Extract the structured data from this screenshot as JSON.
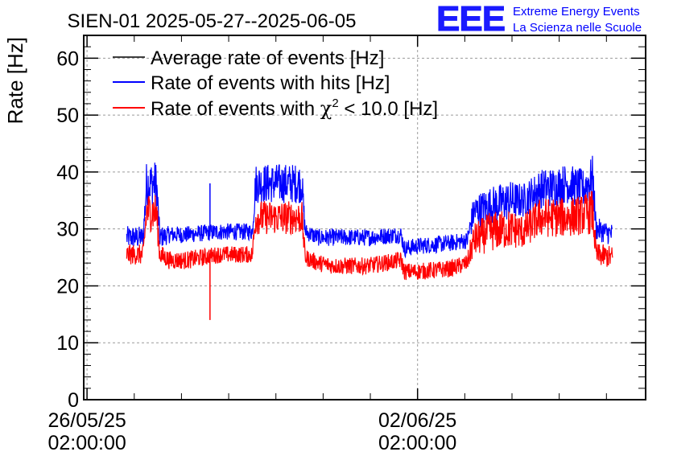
{
  "chart_data": {
    "type": "line",
    "title": "SIEN-01 2025-05-27--2025-06-05",
    "ylabel": "Rate [Hz]",
    "xlabel": "",
    "ylim": [
      0,
      64
    ],
    "xlim": [
      -0.01,
      1.69
    ],
    "yticks": [
      0,
      10,
      20,
      30,
      40,
      50,
      60
    ],
    "xticks": [
      {
        "pos": 0,
        "line1": "26/05/25",
        "line2": "02:00:00"
      },
      {
        "pos": 1,
        "line1": "02/06/25",
        "line2": "02:00:00"
      }
    ],
    "grid": true,
    "legend_position": "top-left",
    "legend": [
      {
        "label": "Average rate of events [Hz]",
        "color": "#000000"
      },
      {
        "label": "Rate of events with hits [Hz]",
        "color": "#0000ff"
      },
      {
        "label_prefix": "Rate of events with ",
        "label_symbol": "χ",
        "label_sup": "2",
        "label_suffix": " < 10.0 [Hz]",
        "color": "#ff0000"
      }
    ],
    "series": [
      {
        "name": "Rate of events with hits [Hz]",
        "color": "#0000ff",
        "x": [
          0.12,
          0.17,
          0.18,
          0.21,
          0.22,
          0.25,
          0.3,
          0.4,
          0.5,
          0.51,
          0.57,
          0.65,
          0.66,
          0.7,
          0.75,
          0.85,
          0.95,
          0.96,
          1.0,
          1.1,
          1.15,
          1.17,
          1.22,
          1.28,
          1.32,
          1.37,
          1.42,
          1.45,
          1.5,
          1.53,
          1.54,
          1.59
        ],
        "y": [
          28.5,
          28.5,
          38.0,
          38.0,
          28.5,
          29.0,
          29.0,
          29.5,
          29.5,
          38.0,
          38.0,
          38.0,
          29.5,
          28.5,
          28.5,
          28.5,
          29.0,
          26.5,
          27.0,
          27.5,
          28.0,
          33.0,
          34.0,
          35.0,
          35.0,
          37.0,
          37.5,
          38.0,
          37.0,
          39.0,
          30.0,
          29.0
        ],
        "noise": [
          2.0,
          2.0,
          4.0,
          4.0,
          2.0,
          1.5,
          1.5,
          1.5,
          1.5,
          3.5,
          3.5,
          3.5,
          1.5,
          1.5,
          1.5,
          1.5,
          1.5,
          1.5,
          1.5,
          1.5,
          1.5,
          3.0,
          3.5,
          3.5,
          3.0,
          3.5,
          3.5,
          3.5,
          3.5,
          4.0,
          2.0,
          2.0
        ]
      },
      {
        "name": "Rate of events with χ2 < 10.0 [Hz]",
        "color": "#ff0000",
        "x": [
          0.12,
          0.17,
          0.18,
          0.21,
          0.22,
          0.25,
          0.3,
          0.4,
          0.5,
          0.51,
          0.57,
          0.65,
          0.66,
          0.7,
          0.75,
          0.85,
          0.95,
          0.96,
          1.0,
          1.1,
          1.15,
          1.17,
          1.22,
          1.28,
          1.32,
          1.37,
          1.42,
          1.45,
          1.5,
          1.53,
          1.54,
          1.59
        ],
        "y": [
          25.5,
          25.5,
          33.0,
          33.0,
          25.5,
          24.5,
          24.5,
          25.5,
          25.5,
          32.0,
          32.0,
          32.0,
          25.0,
          24.0,
          23.5,
          23.5,
          24.5,
          22.5,
          22.5,
          23.0,
          24.0,
          28.0,
          29.5,
          30.0,
          29.5,
          32.0,
          32.0,
          32.0,
          32.5,
          33.0,
          25.5,
          25.0
        ],
        "noise": [
          1.8,
          1.8,
          3.5,
          3.5,
          1.8,
          1.6,
          1.6,
          1.5,
          1.5,
          3.0,
          3.0,
          3.0,
          1.5,
          1.5,
          1.5,
          1.5,
          1.5,
          1.5,
          1.5,
          1.5,
          1.5,
          3.0,
          3.5,
          3.5,
          3.0,
          3.5,
          3.5,
          3.5,
          3.5,
          4.0,
          2.0,
          2.0
        ]
      }
    ],
    "spikes": [
      {
        "series": "Rate of events with hits [Hz]",
        "x": 0.372,
        "y": 38
      },
      {
        "series": "Rate of events with χ2 < 10.0 [Hz]",
        "x": 0.372,
        "y": 14
      }
    ]
  },
  "logo": {
    "mark": "EEE",
    "line1": "Extreme Energy Events",
    "line2": "La Scienza nelle Scuole"
  }
}
